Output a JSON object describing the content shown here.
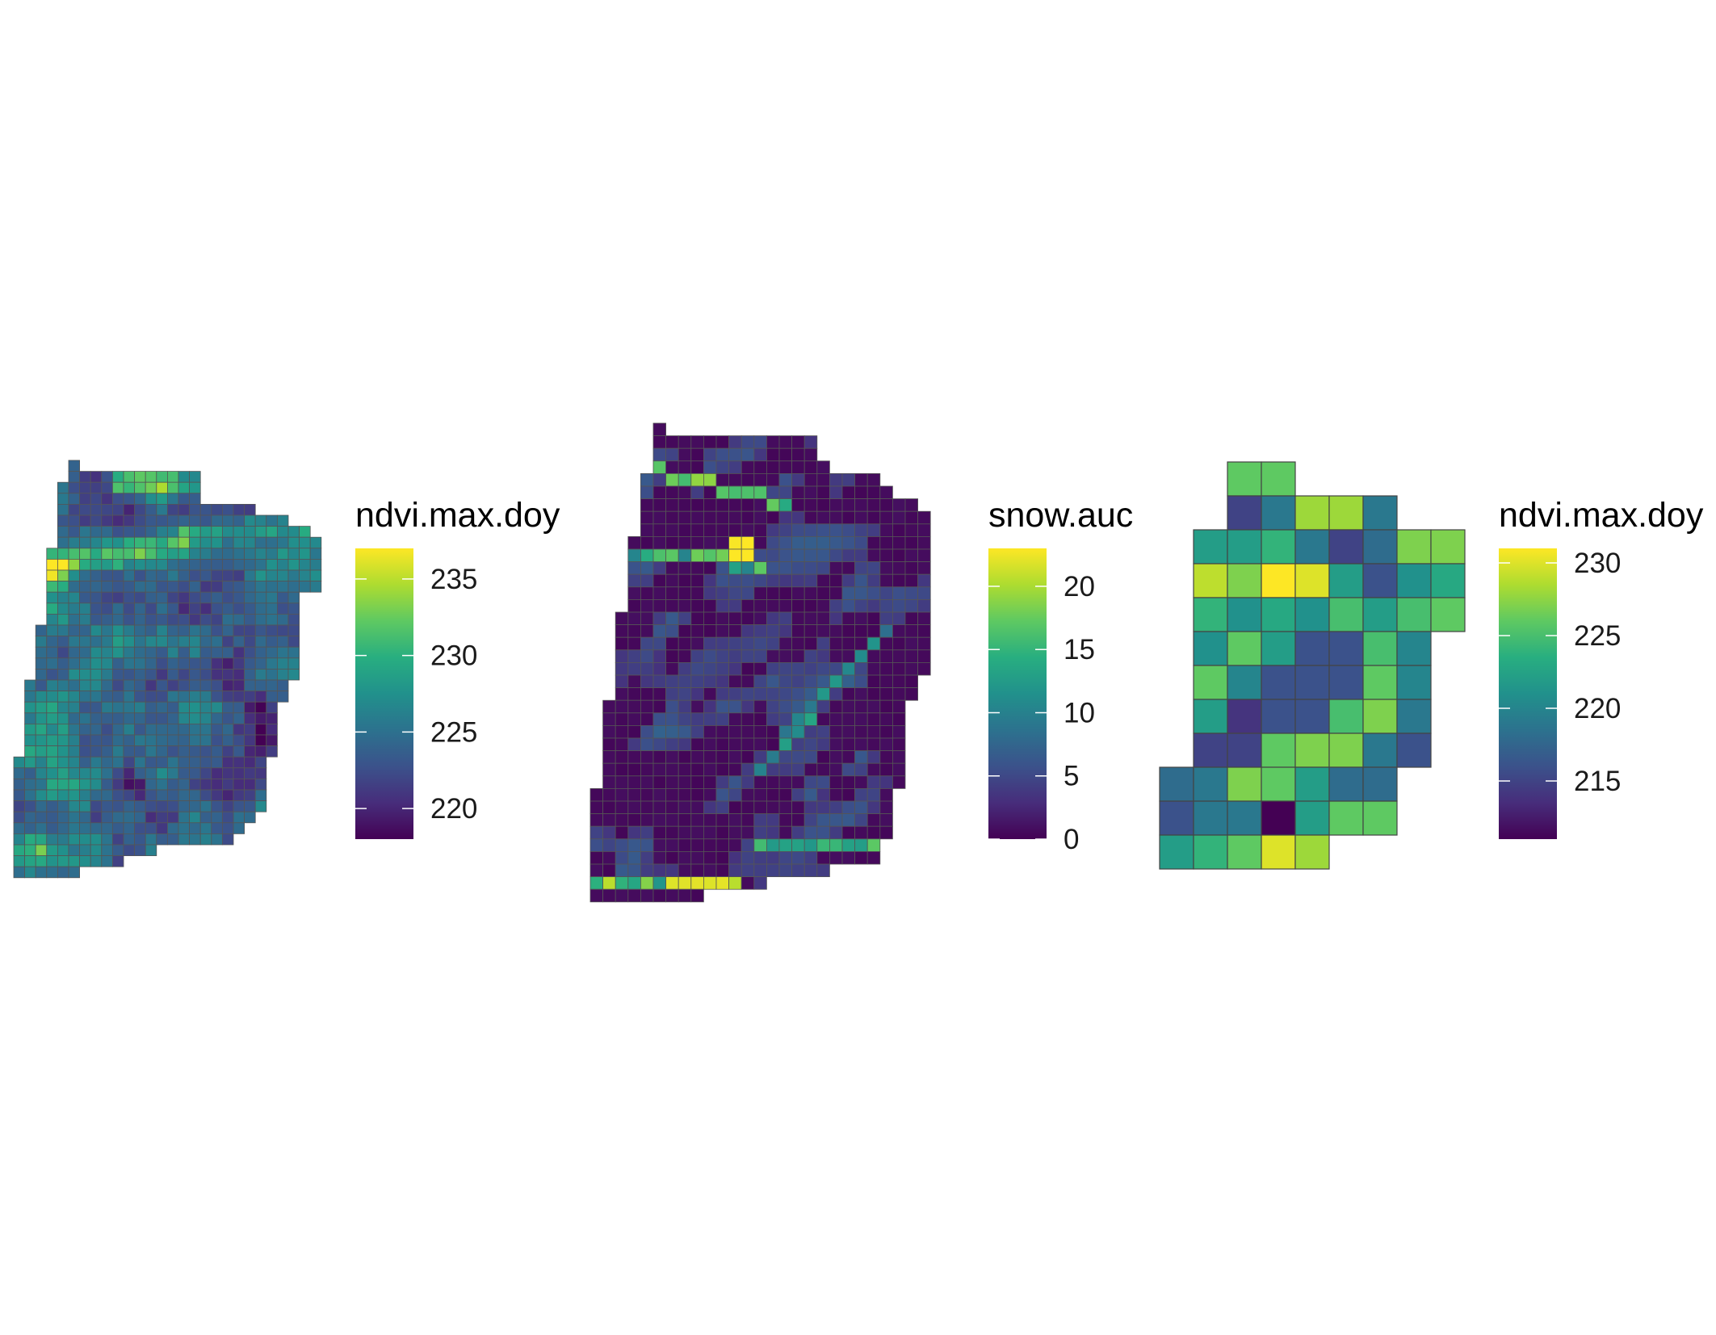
{
  "chart_data": [
    {
      "type": "heatmap",
      "panel": "left",
      "title": "",
      "legend": {
        "title": "ndvi.max.doy",
        "placement": "right",
        "ticks": [
          220,
          225,
          230,
          235
        ],
        "range": [
          218,
          237
        ]
      },
      "colorscale": "viridis",
      "grid": false,
      "cells": {
        "cols": 29,
        "rows": 40,
        "value_range": [
          218,
          237
        ],
        "mean_value": 226
      }
    },
    {
      "type": "heatmap",
      "panel": "middle",
      "title": "",
      "legend": {
        "title": "snow.auc",
        "placement": "right",
        "ticks": [
          0,
          5,
          10,
          15,
          20
        ],
        "range": [
          0,
          23
        ]
      },
      "colorscale": "viridis",
      "grid": false,
      "cells": {
        "cols": 27,
        "rows": 38,
        "value_range": [
          0,
          23
        ],
        "mean_value": 4
      }
    },
    {
      "type": "heatmap",
      "panel": "right",
      "title": "",
      "legend": {
        "title": "ndvi.max.doy",
        "placement": "right",
        "ticks": [
          215,
          220,
          225,
          230
        ],
        "range": [
          211,
          231
        ]
      },
      "colorscale": "viridis",
      "grid": false,
      "values": [
        [
          null,
          null,
          226,
          226,
          null,
          null,
          null,
          null,
          null
        ],
        [
          null,
          null,
          215,
          219,
          228,
          228,
          219,
          null,
          null
        ],
        [
          null,
          222,
          222,
          224,
          219,
          215,
          218,
          227,
          227
        ],
        [
          null,
          229,
          227,
          231,
          230,
          222,
          216,
          221,
          223
        ],
        [
          null,
          224,
          221,
          223,
          221,
          225,
          222,
          225,
          226
        ],
        [
          null,
          221,
          226,
          222,
          216,
          216,
          225,
          220,
          null
        ],
        [
          null,
          226,
          220,
          216,
          216,
          216,
          226,
          220,
          null
        ],
        [
          null,
          222,
          214,
          216,
          216,
          225,
          227,
          219,
          null
        ],
        [
          null,
          215,
          215,
          226,
          227,
          227,
          219,
          216,
          null
        ],
        [
          218,
          219,
          227,
          226,
          222,
          218,
          218,
          null,
          null
        ],
        [
          216,
          219,
          219,
          211,
          222,
          226,
          226,
          null,
          null
        ],
        [
          222,
          224,
          226,
          230,
          228,
          null,
          null,
          null,
          null
        ]
      ]
    }
  ]
}
